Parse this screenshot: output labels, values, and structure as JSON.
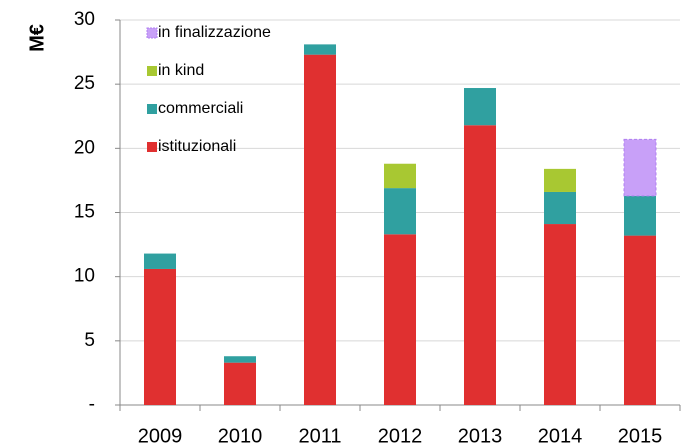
{
  "chart_data": {
    "type": "stacked_bar",
    "y_label": "M€",
    "categories": [
      "2009",
      "2010",
      "2011",
      "2012",
      "2013",
      "2014",
      "2015"
    ],
    "series": [
      {
        "name": "istituzionali",
        "color": "#e03030",
        "values": [
          10.6,
          3.3,
          27.3,
          13.3,
          21.8,
          14.1,
          13.2
        ]
      },
      {
        "name": "commerciali",
        "color": "#30a0a0",
        "values": [
          1.2,
          0.5,
          0.8,
          3.6,
          2.9,
          2.5,
          3.1
        ]
      },
      {
        "name": "in kind",
        "color": "#a8c832",
        "values": [
          null,
          null,
          null,
          1.9,
          null,
          1.8,
          null
        ]
      },
      {
        "name": "in finalizzazione",
        "color": "#c8a0f8",
        "values": [
          null,
          null,
          null,
          null,
          null,
          null,
          4.4
        ]
      }
    ],
    "ylim": [
      0,
      30
    ],
    "yticks": [
      {
        "value": 0,
        "label": "-"
      },
      5,
      10,
      15,
      20,
      25,
      30
    ],
    "grid": true,
    "legend": "top-left"
  }
}
